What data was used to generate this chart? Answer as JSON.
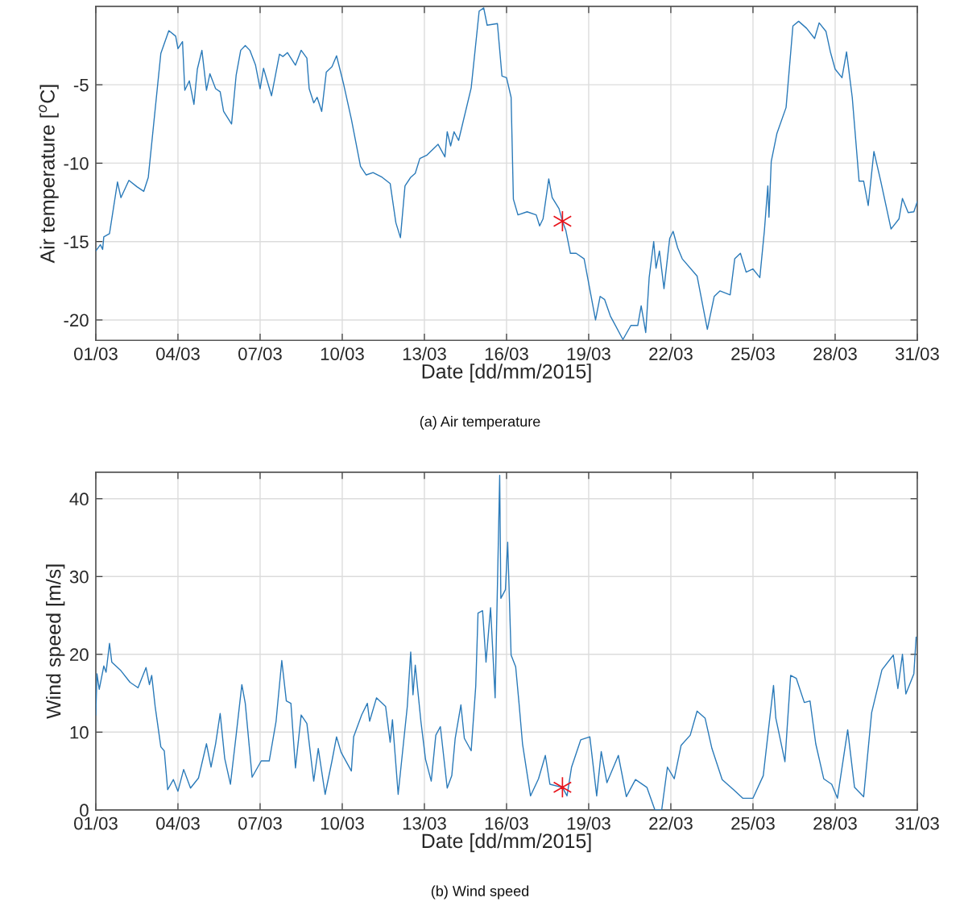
{
  "chart_data": [
    {
      "type": "line",
      "xlabel": "Date [dd/mm/2015]",
      "ylabel": "Air temperature [$^{o}$C]",
      "annotations": [
        "(a) Air temperature"
      ],
      "xlim": [
        "2015-03-01",
        "2015-03-31"
      ],
      "xticks": [
        {
          "value": "2015-03-01",
          "label": "01/03"
        },
        {
          "value": "2015-03-04",
          "label": "04/03"
        },
        {
          "value": "2015-03-07",
          "label": "07/03"
        },
        {
          "value": "2015-03-10",
          "label": "10/03"
        },
        {
          "value": "2015-03-13",
          "label": "13/03"
        },
        {
          "value": "2015-03-16",
          "label": "16/03"
        },
        {
          "value": "2015-03-19",
          "label": "19/03"
        },
        {
          "value": "2015-03-22",
          "label": "22/03"
        },
        {
          "value": "2015-03-25",
          "label": "25/03"
        },
        {
          "value": "2015-03-28",
          "label": "28/03"
        },
        {
          "value": "2015-03-31",
          "label": "31/03"
        }
      ],
      "ylim": [
        -21.3,
        0
      ],
      "yticks": [
        -20,
        -15,
        -10,
        -5
      ],
      "grid": true,
      "line_style": "solid",
      "series": [
        {
          "color": "#2a7ab9",
          "x": [
            "2015-03-01T00:00",
            "2015-03-01T04:00",
            "2015-03-01T06:00",
            "2015-03-01T07:00",
            "2015-03-01T12:00",
            "2015-03-01T19:00",
            "2015-03-01T22:00",
            "2015-03-02T05:00",
            "2015-03-02T12:00",
            "2015-03-02T18:00",
            "2015-03-02T22:00",
            "2015-03-03T09:00",
            "2015-03-03T16:00",
            "2015-03-03T22:00",
            "2015-03-04T00:00",
            "2015-03-04T04:00",
            "2015-03-04T06:00",
            "2015-03-04T10:00",
            "2015-03-04T14:00",
            "2015-03-04T17:00",
            "2015-03-04T21:00",
            "2015-03-05T01:00",
            "2015-03-05T04:00",
            "2015-03-05T09:00",
            "2015-03-05T13:00",
            "2015-03-05T16:00",
            "2015-03-05T23:00",
            "2015-03-06T03:00",
            "2015-03-06T07:00",
            "2015-03-06T11:00",
            "2015-03-06T15:00",
            "2015-03-06T20:00",
            "2015-03-07T00:00",
            "2015-03-07T03:00",
            "2015-03-07T10:00",
            "2015-03-07T17:00",
            "2015-03-07T20:00",
            "2015-03-08T00:00",
            "2015-03-08T07:00",
            "2015-03-08T12:00",
            "2015-03-08T17:00",
            "2015-03-08T19:00",
            "2015-03-08T23:00",
            "2015-03-09T02:00",
            "2015-03-09T06:00",
            "2015-03-09T10:00",
            "2015-03-09T15:00",
            "2015-03-09T19:00",
            "2015-03-10T01:00",
            "2015-03-10T08:00",
            "2015-03-10T16:00",
            "2015-03-10T21:00",
            "2015-03-11T03:00",
            "2015-03-11T11:00",
            "2015-03-11T18:00",
            "2015-03-11T23:00",
            "2015-03-12T03:00",
            "2015-03-12T07:00",
            "2015-03-12T12:00",
            "2015-03-12T16:00",
            "2015-03-12T20:00",
            "2015-03-13T02:00",
            "2015-03-13T12:00",
            "2015-03-13T18:00",
            "2015-03-13T20:00",
            "2015-03-13T23:00",
            "2015-03-14T02:00",
            "2015-03-14T06:00",
            "2015-03-14T17:00",
            "2015-03-15T00:00",
            "2015-03-15T04:00",
            "2015-03-15T07:00",
            "2015-03-15T16:00",
            "2015-03-15T20:00",
            "2015-03-16T00:00",
            "2015-03-16T04:00",
            "2015-03-16T06:00",
            "2015-03-16T10:00",
            "2015-03-16T18:00",
            "2015-03-17T02:00",
            "2015-03-17T05:00",
            "2015-03-17T08:00",
            "2015-03-17T13:00",
            "2015-03-17T16:00",
            "2015-03-17T22:00",
            "2015-03-18T01:00",
            "2015-03-18T04:00",
            "2015-03-18T08:00",
            "2015-03-18T13:00",
            "2015-03-18T20:00",
            "2015-03-19T06:00",
            "2015-03-19T10:00",
            "2015-03-19T14:00",
            "2015-03-19T19:00",
            "2015-03-20T06:00",
            "2015-03-20T13:00",
            "2015-03-20T19:00",
            "2015-03-20T22:00",
            "2015-03-21T02:00",
            "2015-03-21T05:00",
            "2015-03-21T09:00",
            "2015-03-21T11:00",
            "2015-03-21T14:00",
            "2015-03-21T18:00",
            "2015-03-21T23:00",
            "2015-03-22T02:00",
            "2015-03-22T06:00",
            "2015-03-22T10:00",
            "2015-03-22T23:00",
            "2015-03-23T08:00",
            "2015-03-23T14:00",
            "2015-03-23T19:00",
            "2015-03-24T04:00",
            "2015-03-24T08:00",
            "2015-03-24T13:00",
            "2015-03-24T18:00",
            "2015-03-25T00:00",
            "2015-03-25T06:00",
            "2015-03-25T10:00",
            "2015-03-25T13:00",
            "2015-03-25T14:00",
            "2015-03-25T16:00",
            "2015-03-25T21:00",
            "2015-03-26T05:00",
            "2015-03-26T11:00",
            "2015-03-26T16:00",
            "2015-03-26T23:00",
            "2015-03-27T06:00",
            "2015-03-27T10:00",
            "2015-03-27T16:00",
            "2015-03-27T20:00",
            "2015-03-28T00:00",
            "2015-03-28T06:00",
            "2015-03-28T10:00",
            "2015-03-28T15:00",
            "2015-03-28T21:00",
            "2015-03-29T01:00",
            "2015-03-29T05:00",
            "2015-03-29T10:00",
            "2015-03-29T16:00",
            "2015-03-30T01:00",
            "2015-03-30T08:00",
            "2015-03-30T11:00",
            "2015-03-30T16:00",
            "2015-03-30T21:00",
            "2015-03-31T00:00"
          ],
          "values": [
            -15.6,
            -15.2,
            -15.5,
            -14.7,
            -14.5,
            -11.2,
            -12.2,
            -11.1,
            -11.5,
            -11.8,
            -10.9,
            -3.0,
            -1.55,
            -1.9,
            -2.7,
            -2.25,
            -5.35,
            -4.75,
            -6.25,
            -4.0,
            -2.8,
            -5.35,
            -4.3,
            -5.25,
            -5.45,
            -6.7,
            -7.5,
            -4.4,
            -2.8,
            -2.5,
            -2.8,
            -3.75,
            -5.25,
            -3.95,
            -5.7,
            -3.05,
            -3.2,
            -2.95,
            -3.75,
            -2.8,
            -3.3,
            -5.25,
            -6.15,
            -5.8,
            -6.7,
            -4.2,
            -3.85,
            -3.15,
            -4.9,
            -7.2,
            -10.2,
            -10.75,
            -10.6,
            -10.9,
            -11.3,
            -13.8,
            -14.75,
            -11.45,
            -10.9,
            -10.65,
            -9.7,
            -9.5,
            -8.8,
            -9.6,
            -8.0,
            -8.9,
            -8.0,
            -8.55,
            -5.2,
            -0.3,
            -0.1,
            -1.2,
            -1.1,
            -4.45,
            -4.55,
            -5.8,
            -12.3,
            -13.3,
            -13.1,
            -13.3,
            -14.0,
            -13.55,
            -11.0,
            -12.2,
            -12.9,
            -13.7,
            -14.3,
            -15.75,
            -15.75,
            -16.1,
            -20.0,
            -18.5,
            -18.7,
            -19.75,
            -21.25,
            -20.35,
            -20.35,
            -19.1,
            -20.8,
            -17.3,
            -15.0,
            -16.7,
            -15.6,
            -18.0,
            -14.8,
            -14.35,
            -15.4,
            -16.1,
            -17.2,
            -20.6,
            -18.5,
            -18.15,
            -18.4,
            -16.1,
            -15.75,
            -16.95,
            -16.75,
            -17.3,
            -14.3,
            -11.45,
            -13.45,
            -9.9,
            -8.1,
            -6.45,
            -1.25,
            -0.95,
            -1.4,
            -2.05,
            -1.05,
            -1.6,
            -2.95,
            -4.0,
            -4.55,
            -2.9,
            -5.8,
            -11.15,
            -11.15,
            -12.7,
            -9.25,
            -11.15,
            -14.2,
            -13.55,
            -12.25,
            -13.15,
            -13.1,
            -12.45
          ]
        },
        {
          "type": "scatter",
          "marker": "cross",
          "color": "#e8141c",
          "x": [
            "2015-03-18T01:00"
          ],
          "values": [
            -13.7
          ]
        }
      ]
    },
    {
      "type": "line",
      "xlabel": "Date [dd/mm/2015]",
      "ylabel": "Wind speed [m/s]",
      "annotations": [
        "(b) Wind speed"
      ],
      "xlim": [
        "2015-03-01",
        "2015-03-31"
      ],
      "xticks": [
        {
          "value": "2015-03-01",
          "label": "01/03"
        },
        {
          "value": "2015-03-04",
          "label": "04/03"
        },
        {
          "value": "2015-03-07",
          "label": "07/03"
        },
        {
          "value": "2015-03-10",
          "label": "10/03"
        },
        {
          "value": "2015-03-13",
          "label": "13/03"
        },
        {
          "value": "2015-03-16",
          "label": "16/03"
        },
        {
          "value": "2015-03-19",
          "label": "19/03"
        },
        {
          "value": "2015-03-22",
          "label": "22/03"
        },
        {
          "value": "2015-03-25",
          "label": "25/03"
        },
        {
          "value": "2015-03-28",
          "label": "28/03"
        },
        {
          "value": "2015-03-31",
          "label": "31/03"
        }
      ],
      "ylim": [
        0,
        43.4
      ],
      "yticks": [
        0,
        10,
        20,
        30,
        40
      ],
      "grid": true,
      "line_style": "solid",
      "series": [
        {
          "color": "#2a7ab9",
          "x": [
            "2015-03-01T00:00",
            "2015-03-01T01:00",
            "2015-03-01T03:00",
            "2015-03-01T07:00",
            "2015-03-01T09:00",
            "2015-03-01T12:00",
            "2015-03-01T14:00",
            "2015-03-01T22:00",
            "2015-03-02T06:00",
            "2015-03-02T13:00",
            "2015-03-02T20:00",
            "2015-03-02T23:00",
            "2015-03-03T01:00",
            "2015-03-03T04:00",
            "2015-03-03T09:00",
            "2015-03-03T12:00",
            "2015-03-03T15:00",
            "2015-03-03T20:00",
            "2015-03-04T00:00",
            "2015-03-04T05:00",
            "2015-03-04T11:00",
            "2015-03-04T18:00",
            "2015-03-05T01:00",
            "2015-03-05T05:00",
            "2015-03-05T09:00",
            "2015-03-05T13:00",
            "2015-03-05T17:00",
            "2015-03-05T22:00",
            "2015-03-06T03:00",
            "2015-03-06T08:00",
            "2015-03-06T11:00",
            "2015-03-06T17:00",
            "2015-03-07T01:00",
            "2015-03-07T08:00",
            "2015-03-07T14:00",
            "2015-03-07T19:00",
            "2015-03-07T23:00",
            "2015-03-08T03:00",
            "2015-03-08T07:00",
            "2015-03-08T12:00",
            "2015-03-08T17:00",
            "2015-03-08T23:00",
            "2015-03-09T03:00",
            "2015-03-09T09:00",
            "2015-03-09T15:00",
            "2015-03-09T19:00",
            "2015-03-09T23:00",
            "2015-03-10T08:00",
            "2015-03-10T10:00",
            "2015-03-10T17:00",
            "2015-03-10T22:00",
            "2015-03-11T00:00",
            "2015-03-11T06:00",
            "2015-03-11T14:00",
            "2015-03-11T18:00",
            "2015-03-11T20:00",
            "2015-03-12T01:00",
            "2015-03-12T09:00",
            "2015-03-12T12:00",
            "2015-03-12T14:00",
            "2015-03-12T16:00",
            "2015-03-12T21:00",
            "2015-03-13T01:00",
            "2015-03-13T06:00",
            "2015-03-13T10:00",
            "2015-03-13T14:00",
            "2015-03-13T20:00",
            "2015-03-14T00:00",
            "2015-03-14T03:00",
            "2015-03-14T08:00",
            "2015-03-14T11:00",
            "2015-03-14T17:00",
            "2015-03-14T21:00",
            "2015-03-14T23:00",
            "2015-03-15T03:00",
            "2015-03-15T06:00",
            "2015-03-15T10:00",
            "2015-03-15T14:00",
            "2015-03-15T18:00",
            "2015-03-15T19:00",
            "2015-03-15T23:00",
            "2015-03-16T01:00",
            "2015-03-16T04:00",
            "2015-03-16T08:00",
            "2015-03-16T11:00",
            "2015-03-16T14:00",
            "2015-03-16T21:00",
            "2015-03-17T04:00",
            "2015-03-17T10:00",
            "2015-03-17T14:00",
            "2015-03-18T01:00",
            "2015-03-18T05:00",
            "2015-03-18T09:00",
            "2015-03-18T17:00",
            "2015-03-19T01:00",
            "2015-03-19T07:00",
            "2015-03-19T11:00",
            "2015-03-19T16:00",
            "2015-03-20T02:00",
            "2015-03-20T09:00",
            "2015-03-20T17:00",
            "2015-03-21T03:00",
            "2015-03-21T10:00",
            "2015-03-21T16:00",
            "2015-03-21T21:00",
            "2015-03-22T03:00",
            "2015-03-22T09:00",
            "2015-03-22T17:00",
            "2015-03-22T23:00",
            "2015-03-23T06:00",
            "2015-03-23T12:00",
            "2015-03-23T21:00",
            "2015-03-24T07:00",
            "2015-03-24T15:00",
            "2015-03-25T00:00",
            "2015-03-25T09:00",
            "2015-03-25T18:00",
            "2015-03-25T20:00",
            "2015-03-26T04:00",
            "2015-03-26T09:00",
            "2015-03-26T14:00",
            "2015-03-26T21:00",
            "2015-03-27T02:00",
            "2015-03-27T07:00",
            "2015-03-27T14:00",
            "2015-03-27T21:00",
            "2015-03-28T02:00",
            "2015-03-28T11:00",
            "2015-03-28T17:00",
            "2015-03-29T01:00",
            "2015-03-29T08:00",
            "2015-03-29T17:00",
            "2015-03-30T03:00",
            "2015-03-30T07:00",
            "2015-03-30T11:00",
            "2015-03-30T14:00",
            "2015-03-30T21:00",
            "2015-03-30T23:00"
          ],
          "values": [
            12.2,
            17.5,
            15.5,
            18.5,
            17.7,
            21.4,
            19.0,
            17.9,
            16.4,
            15.7,
            18.3,
            16.1,
            17.3,
            13.3,
            8.1,
            7.6,
            2.6,
            3.9,
            2.4,
            5.2,
            2.8,
            4.1,
            8.5,
            5.5,
            8.5,
            12.4,
            6.6,
            3.3,
            9.6,
            16.1,
            13.7,
            4.2,
            6.3,
            6.3,
            11.4,
            19.2,
            14.0,
            13.7,
            5.4,
            12.2,
            11.1,
            3.7,
            7.9,
            2.0,
            6.3,
            9.4,
            7.4,
            5.0,
            9.4,
            12.2,
            13.7,
            11.4,
            14.4,
            13.3,
            8.7,
            11.6,
            2.0,
            13.3,
            20.3,
            14.8,
            18.6,
            11.3,
            6.5,
            3.7,
            9.6,
            10.7,
            2.8,
            4.4,
            9.2,
            13.5,
            9.2,
            7.6,
            15.9,
            25.3,
            25.6,
            19.0,
            26.0,
            14.4,
            43.0,
            27.2,
            28.3,
            34.4,
            19.9,
            18.4,
            13.6,
            8.5,
            1.8,
            4.0,
            7.0,
            3.3,
            2.9,
            1.8,
            5.5,
            9.0,
            9.4,
            1.8,
            7.5,
            3.5,
            7.0,
            1.7,
            3.9,
            2.9,
            0,
            0,
            5.5,
            4.0,
            8.3,
            9.6,
            12.7,
            11.8,
            7.9,
            3.9,
            2.6,
            1.5,
            1.5,
            4.4,
            16.0,
            11.8,
            6.2,
            17.3,
            16.9,
            13.8,
            14.0,
            8.5,
            4.0,
            3.3,
            1.5,
            10.3,
            2.9,
            1.7,
            12.5,
            18.0,
            19.9,
            15.6,
            20.0,
            14.9,
            17.5,
            22.2
          ]
        },
        {
          "type": "scatter",
          "marker": "cross",
          "color": "#e8141c",
          "x": [
            "2015-03-18T01:00"
          ],
          "values": [
            2.9
          ]
        }
      ]
    }
  ]
}
